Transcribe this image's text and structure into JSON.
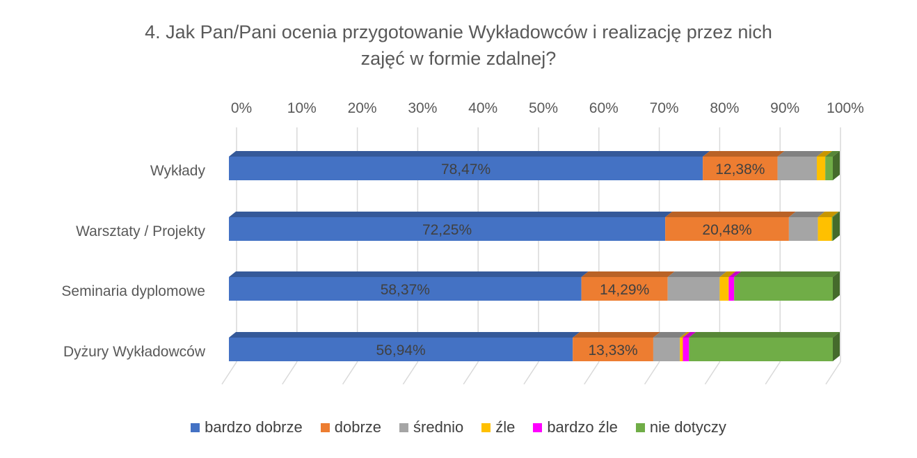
{
  "chart_data": {
    "type": "bar",
    "orientation": "horizontal",
    "stacked": "100%",
    "title_line1": "4. Jak Pan/Pani ocenia przygotowanie Wykładowców i realizację przez nich",
    "title_line2": "zajęć w formie zdalnej?",
    "categories": [
      "Wykłady",
      "Warsztaty / Projekty",
      "Seminaria dyplomowe",
      "Dyżury Wykładowców"
    ],
    "x_ticks": [
      "0%",
      "10%",
      "20%",
      "30%",
      "40%",
      "50%",
      "60%",
      "70%",
      "80%",
      "90%",
      "100%"
    ],
    "xlim": [
      0,
      100
    ],
    "grid": true,
    "legend_position": "bottom",
    "series": [
      {
        "name": "bardzo dobrze",
        "color": "#4472C4",
        "values": [
          78.47,
          72.25,
          58.37,
          56.94
        ],
        "labels": [
          "78,47%",
          "72,25%",
          "58,37%",
          "56,94%"
        ]
      },
      {
        "name": "dobrze",
        "color": "#ED7D31",
        "values": [
          12.38,
          20.48,
          14.29,
          13.33
        ],
        "labels": [
          "12,38%",
          "20,48%",
          "14,29%",
          "13,33%"
        ]
      },
      {
        "name": "średnio",
        "color": "#A5A5A5",
        "values": [
          6.5,
          4.8,
          8.6,
          4.4
        ],
        "labels": [
          "",
          "",
          "",
          ""
        ]
      },
      {
        "name": "źle",
        "color": "#FFC000",
        "values": [
          1.4,
          2.3,
          1.5,
          0.5
        ],
        "labels": [
          "",
          "",
          "",
          ""
        ]
      },
      {
        "name": "bardzo źle",
        "color": "#FF00FF",
        "values": [
          0.0,
          0.0,
          0.9,
          1.0
        ],
        "labels": [
          "",
          "",
          "",
          ""
        ]
      },
      {
        "name": "nie dotyczy",
        "color": "#70AD47",
        "values": [
          1.25,
          0.17,
          16.34,
          23.83
        ],
        "labels": [
          "",
          "",
          "",
          ""
        ]
      }
    ]
  }
}
